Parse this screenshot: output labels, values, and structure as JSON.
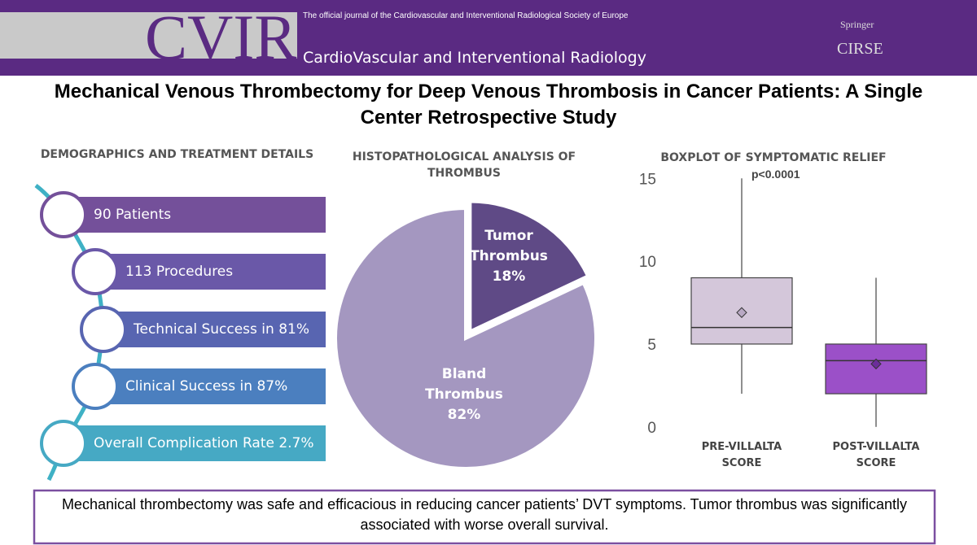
{
  "header": {
    "journal_abbr": "CVIR",
    "tagline": "The official journal of the  Cardiovascular and Interventional Radiological Society of Europe",
    "journal_name": "CardioVascular and Interventional Radiology",
    "publisher": "Springer",
    "society": "CIRSE"
  },
  "title": "Mechanical Venous Thrombectomy for Deep Venous Thrombosis in Cancer Patients: A Single Center Retrospective Study",
  "demographics": {
    "title": "DEMOGRAPHICS AND TREATMENT DETAILS",
    "items": [
      "90 Patients",
      "113 Procedures",
      "Technical Success in 81%",
      "Clinical Success in 87%",
      "Overall Complication Rate 2.7%"
    ],
    "colors": [
      "#74509a",
      "#6a58a8",
      "#5865b1",
      "#4b7fbf",
      "#46a9c4"
    ]
  },
  "chart_data": [
    {
      "type": "pie",
      "title": "HISTOPATHOLOGICAL ANALYSIS OF THROMBUS",
      "categories": [
        "Tumor Thrombus",
        "Bland Thrombus"
      ],
      "values": [
        18,
        82
      ],
      "value_labels": [
        "18%",
        "82%"
      ],
      "colors": [
        "#5f4a86",
        "#a497c0"
      ]
    },
    {
      "type": "box",
      "title": "BOXPLOT OF SYMPTOMATIC RELIEF",
      "annotation": "p<0.0001",
      "categories": [
        "PRE-VILLALTA SCORE",
        "POST-VILLALTA SCORE"
      ],
      "series": [
        {
          "min": 2,
          "q1": 5,
          "median": 6,
          "q3": 9,
          "max": 15,
          "mean": 6.9,
          "color": "#d4c7da"
        },
        {
          "min": 0,
          "q1": 2,
          "median": 4,
          "q3": 5,
          "max": 9,
          "mean": 3.8,
          "color": "#9b50c8"
        }
      ],
      "ylim": [
        -0.5,
        15.7
      ],
      "yticks": [
        0,
        5,
        10,
        15
      ],
      "grid": false
    }
  ],
  "conclusion": "Mechanical thrombectomy was safe and efficacious in reducing cancer patients’ DVT symptoms. Tumor thrombus was significantly associated with worse overall survival."
}
